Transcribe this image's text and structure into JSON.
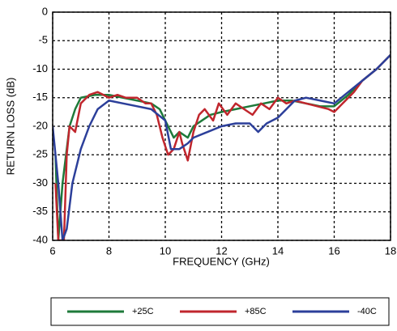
{
  "chart_data": {
    "type": "line",
    "xlabel": "FREQUENCY (GHz)",
    "ylabel": "RETURN LOSS (dB)",
    "xlim": [
      6,
      18
    ],
    "xticks": [
      6,
      8,
      10,
      12,
      14,
      16,
      18
    ],
    "ylim": [
      -40,
      0
    ],
    "yticks": [
      0,
      -5,
      -10,
      -15,
      -20,
      -25,
      -30,
      -35,
      -40
    ],
    "grid": true,
    "legend": "bottom",
    "series": [
      {
        "name": "+25C",
        "color": "#1e7a3a",
        "x": [
          6.1,
          6.2,
          6.35,
          6.6,
          6.8,
          7.0,
          7.5,
          8.0,
          8.5,
          9.0,
          9.5,
          9.8,
          10.1,
          10.3,
          10.5,
          10.8,
          11.0,
          11.3,
          11.6,
          12.0,
          12.5,
          13.0,
          13.5,
          14.0,
          14.5,
          15.0,
          15.5,
          16.0,
          16.5,
          17.0,
          17.5,
          18.0
        ],
        "values": [
          -25,
          -40,
          -30,
          -20,
          -17,
          -15,
          -14.5,
          -14.5,
          -15,
          -15.5,
          -16,
          -17,
          -20,
          -22,
          -21,
          -22,
          -20,
          -19,
          -18,
          -17.5,
          -17,
          -16.5,
          -16,
          -15.5,
          -15.5,
          -16,
          -16.5,
          -16.5,
          -14.5,
          -12,
          -10,
          -7.5
        ]
      },
      {
        "name": "+85C",
        "color": "#c0262d",
        "x": [
          6.1,
          6.2,
          6.4,
          6.5,
          6.6,
          6.8,
          7.0,
          7.3,
          7.6,
          8.0,
          8.3,
          8.6,
          9.0,
          9.3,
          9.5,
          9.7,
          9.9,
          10.1,
          10.3,
          10.5,
          10.6,
          10.8,
          11.0,
          11.2,
          11.4,
          11.7,
          11.9,
          12.2,
          12.5,
          12.8,
          13.1,
          13.4,
          13.7,
          14.0,
          14.3,
          14.6,
          15.0,
          15.4,
          15.8,
          16.0,
          16.3,
          16.7,
          17.0,
          17.5,
          18.0
        ],
        "values": [
          -30,
          -40,
          -40,
          -25,
          -20,
          -21,
          -16,
          -14.5,
          -14,
          -15,
          -14.5,
          -15,
          -15,
          -16,
          -16,
          -18,
          -22,
          -25,
          -24,
          -21,
          -23,
          -26,
          -21,
          -18,
          -17,
          -19,
          -16,
          -18,
          -16,
          -17,
          -18,
          -16,
          -17,
          -15,
          -16,
          -15.5,
          -16,
          -16.5,
          -17,
          -17.5,
          -16,
          -14,
          -12,
          -10,
          -7.5
        ]
      },
      {
        "name": "-40C",
        "color": "#2c3f9a",
        "x": [
          6.0,
          6.2,
          6.35,
          6.5,
          6.7,
          7.0,
          7.3,
          7.6,
          8.0,
          8.5,
          9.0,
          9.5,
          10.0,
          10.2,
          10.5,
          10.8,
          11.0,
          11.5,
          12.0,
          12.5,
          13.0,
          13.3,
          13.6,
          14.0,
          14.3,
          14.6,
          15.0,
          15.5,
          16.0,
          16.5,
          17.0,
          17.5,
          18.0
        ],
        "values": [
          -20,
          -30,
          -40,
          -38,
          -30,
          -24,
          -20,
          -17,
          -15.5,
          -16,
          -16.5,
          -17,
          -19,
          -24,
          -24,
          -23,
          -22,
          -21,
          -20,
          -19.5,
          -19.5,
          -21,
          -19.5,
          -18.5,
          -17,
          -15.5,
          -15,
          -15.5,
          -16,
          -14,
          -12,
          -10,
          -7.5
        ]
      }
    ]
  }
}
